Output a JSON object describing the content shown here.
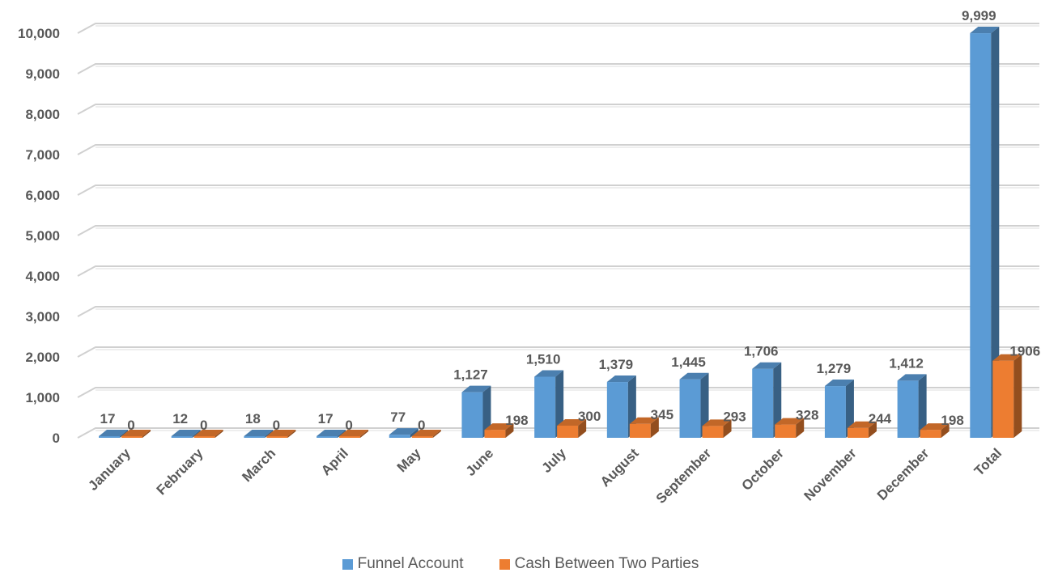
{
  "chart_data": {
    "type": "bar",
    "categories": [
      "January",
      "February",
      "March",
      "April",
      "May",
      "June",
      "July",
      "August",
      "September",
      "October",
      "November",
      "December",
      "Total"
    ],
    "series": [
      {
        "name": "Funnel Account",
        "color": "#5B9BD5",
        "values": [
          17,
          12,
          18,
          17,
          77,
          1127,
          1510,
          1379,
          1445,
          1706,
          1279,
          1412,
          9999
        ],
        "labels": [
          "17",
          "12",
          "18",
          "17",
          "77",
          "1,127",
          "1,510",
          "1,379",
          "1,445",
          "1,706",
          "1,279",
          "1,412",
          "9,999"
        ]
      },
      {
        "name": "Cash Between Two Parties",
        "color": "#ED7D31",
        "values": [
          0,
          0,
          0,
          0,
          0,
          198,
          300,
          345,
          293,
          328,
          244,
          198,
          1906
        ],
        "labels": [
          "0",
          "0",
          "0",
          "0",
          "0",
          "198",
          "300",
          "345",
          "293",
          "328",
          "244",
          "198",
          "1906"
        ]
      }
    ],
    "ylim": [
      0,
      10000
    ],
    "yticks": [
      0,
      1000,
      2000,
      3000,
      4000,
      5000,
      6000,
      7000,
      8000,
      9000,
      10000
    ],
    "ytick_labels": [
      "0",
      "1,000",
      "2,000",
      "3,000",
      "4,000",
      "5,000",
      "6,000",
      "7,000",
      "8,000",
      "9,000",
      "10,000"
    ],
    "grid": true,
    "three_d": true,
    "legend_position": "bottom"
  }
}
